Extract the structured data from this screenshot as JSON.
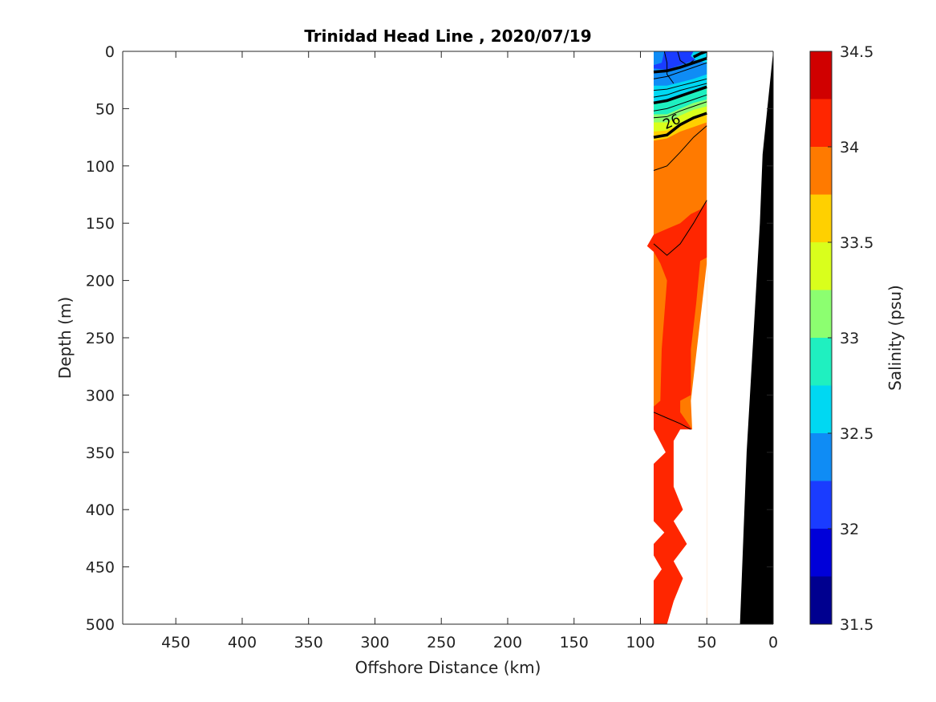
{
  "chart_data": {
    "type": "heatmap",
    "title": "Trinidad Head Line , 2020/07/19",
    "xlabel": "Offshore Distance (km)",
    "ylabel": "Depth (m)",
    "xlim": [
      490,
      0
    ],
    "ylim": [
      0,
      500
    ],
    "x_reversed": true,
    "y_reversed": true,
    "x_ticks": [
      450,
      400,
      350,
      300,
      250,
      200,
      150,
      100,
      50,
      0
    ],
    "y_ticks": [
      0,
      50,
      100,
      150,
      200,
      250,
      300,
      350,
      400,
      450,
      500
    ],
    "colorbar": {
      "label": "Salinity (psu)",
      "range": [
        31.5,
        34.5
      ],
      "tick_values": [
        31.5,
        32,
        32.5,
        33,
        33.5,
        34,
        34.5
      ],
      "tick_labels": [
        "31.5",
        "32",
        "32.5",
        "33",
        "33.5",
        "34",
        "34.5"
      ],
      "levels": [
        31.5,
        31.75,
        32,
        32.25,
        32.5,
        32.75,
        33,
        33.25,
        33.5,
        33.75,
        34,
        34.25,
        34.5
      ],
      "colors": [
        "#00008f",
        "#0000d9",
        "#1a3cff",
        "#0f8cf5",
        "#00d8f2",
        "#1ff0c0",
        "#8cff70",
        "#d9ff1c",
        "#ffd000",
        "#ff7a00",
        "#ff2600",
        "#d00000"
      ]
    },
    "contour_labels": [
      {
        "text": "26",
        "x": 75,
        "y": 65
      }
    ],
    "station_range_km": [
      90,
      50
    ],
    "bathymetry_color": "#000000"
  }
}
